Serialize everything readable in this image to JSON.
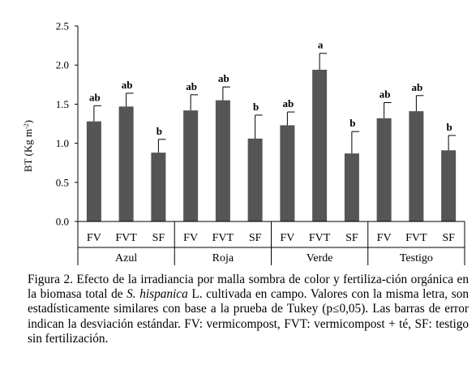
{
  "chart_data": {
    "type": "bar",
    "ylabel_parts": [
      "BT (Kg m",
      "-2",
      ")"
    ],
    "ylim": [
      0,
      2.5
    ],
    "y_ticks": [
      "0.0",
      "0.5",
      "1.0",
      "1.5",
      "2.0",
      "2.5"
    ],
    "grid": false,
    "colors": {
      "bar": "#555555",
      "axis": "#000000"
    },
    "groups": [
      {
        "name": "Azul",
        "bars": [
          {
            "category": "FV",
            "value": 1.28,
            "error": 0.2,
            "letter": "ab"
          },
          {
            "category": "FVT",
            "value": 1.47,
            "error": 0.17,
            "letter": "ab"
          },
          {
            "category": "SF",
            "value": 0.88,
            "error": 0.17,
            "letter": "b"
          }
        ]
      },
      {
        "name": "Roja",
        "bars": [
          {
            "category": "FV",
            "value": 1.42,
            "error": 0.2,
            "letter": "ab"
          },
          {
            "category": "FVT",
            "value": 1.55,
            "error": 0.17,
            "letter": "ab"
          },
          {
            "category": "SF",
            "value": 1.06,
            "error": 0.3,
            "letter": "b"
          }
        ]
      },
      {
        "name": "Verde",
        "bars": [
          {
            "category": "FV",
            "value": 1.23,
            "error": 0.17,
            "letter": "ab"
          },
          {
            "category": "FVT",
            "value": 1.94,
            "error": 0.21,
            "letter": "a"
          },
          {
            "category": "SF",
            "value": 0.87,
            "error": 0.28,
            "letter": "b"
          }
        ]
      },
      {
        "name": "Testigo",
        "bars": [
          {
            "category": "FV",
            "value": 1.32,
            "error": 0.2,
            "letter": "ab"
          },
          {
            "category": "FVT",
            "value": 1.41,
            "error": 0.2,
            "letter": "ab"
          },
          {
            "category": "SF",
            "value": 0.91,
            "error": 0.19,
            "letter": "b"
          }
        ]
      }
    ]
  },
  "caption": {
    "part1": "Figura 2. Efecto de la irradiancia por malla sombra de color y fertiliza-ción orgánica en la biomasa total de ",
    "species": "S. hispanica",
    "part2": " L. cultivada en campo. Valores con la misma letra, son estadísticamente similares con base a la prueba de Tukey (p≤0,05). Las barras de error indican la desviación estándar. FV: vermicompost, FVT: vermicompost + té, SF: testigo sin fertilización."
  }
}
